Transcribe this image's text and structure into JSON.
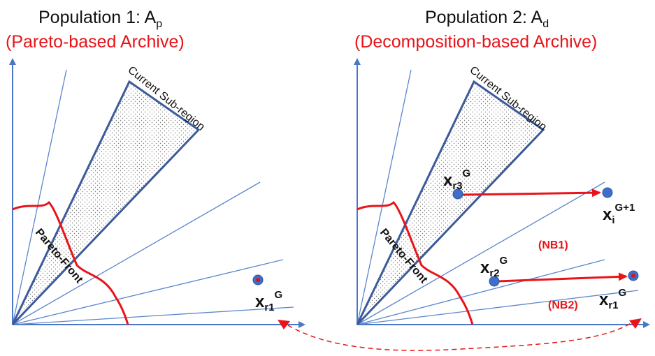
{
  "left_panel": {
    "title": {
      "main": "Population 1: A",
      "sub": "p"
    },
    "subtitle": "(Pareto-based Archive)",
    "region_label": "Current Sub-region",
    "front_label": "Pareto-Front",
    "points": [
      {
        "name": "x",
        "sub": "r1",
        "sup": "G"
      }
    ]
  },
  "right_panel": {
    "title": {
      "main": "Population 2: A",
      "sub": "d"
    },
    "subtitle": "(Decomposition-based Archive)",
    "region_label": "Current Sub-region",
    "front_label": "Pareto-Front",
    "points": [
      {
        "name": "x",
        "sub": "r3",
        "sup": "G"
      },
      {
        "name": "x",
        "sub": "i",
        "sup": "G+1"
      },
      {
        "name": "x",
        "sub": "r2",
        "sup": "G"
      },
      {
        "name": "x",
        "sub": "r1",
        "sup": "G"
      }
    ],
    "neighborhoods": [
      "(NB1)",
      "(NB2)"
    ]
  },
  "colors": {
    "axis": "#4a78c8",
    "ray": "#5b86cc",
    "region": "#3c5b9a",
    "front": "#e8141a",
    "arrow": "#e8141a",
    "point_fill": "#3f6ec9",
    "point_center": "#d0191f"
  }
}
